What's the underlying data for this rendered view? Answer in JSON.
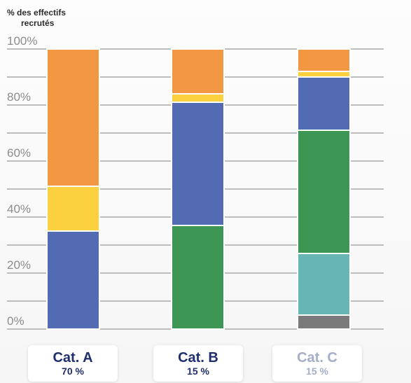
{
  "chart_data": {
    "type": "bar",
    "stacked": true,
    "ylabel": "% des effectifs recrutés",
    "ylabel_lines": [
      "% des effectifs",
      "recrutés"
    ],
    "ylim": [
      0,
      100
    ],
    "yticks": [
      "0%",
      "20%",
      "40%",
      "60%",
      "80%",
      "100%"
    ],
    "grid": true,
    "categories": [
      {
        "name": "Cat. A",
        "share": "70 %",
        "color": "#1f2f6e"
      },
      {
        "name": "Cat. B",
        "share": "15 %",
        "color": "#1f2f6e"
      },
      {
        "name": "Cat. C",
        "share": "15 %",
        "color": "#a5aec9"
      }
    ],
    "series": [
      {
        "color": "#7a7a7a",
        "values": [
          0,
          0,
          5
        ]
      },
      {
        "color": "#68b6b3",
        "values": [
          0,
          0,
          22
        ]
      },
      {
        "color": "#3e9655",
        "values": [
          0,
          37,
          44
        ]
      },
      {
        "color": "#536bb3",
        "values": [
          35,
          44,
          19
        ]
      },
      {
        "color": "#fbd13f",
        "values": [
          16,
          3,
          2
        ]
      },
      {
        "color": "#f29842",
        "values": [
          49,
          16,
          8
        ]
      }
    ]
  }
}
